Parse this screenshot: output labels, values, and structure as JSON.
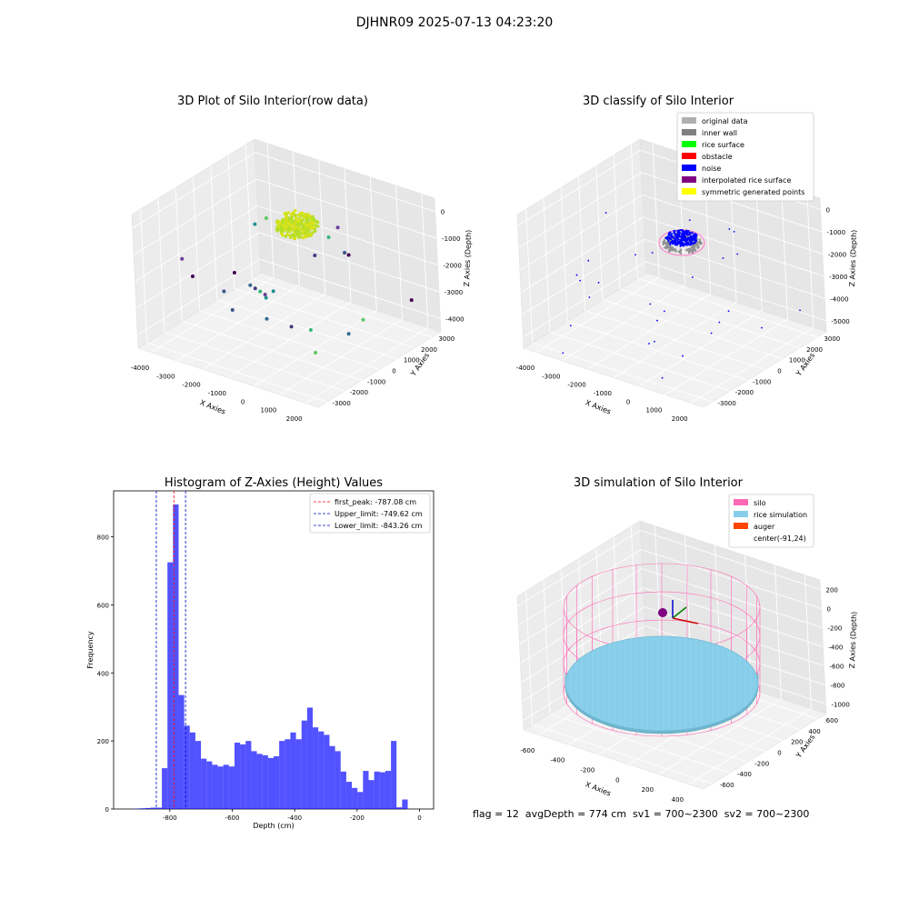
{
  "suptitle": "DJHNR09 2025-07-13 04:23:20",
  "footer": "flag = 12  avgDepth = 774 cm  sv1 = 700~2300  sv2 = 700~2300",
  "chart_data": [
    {
      "type": "scatter",
      "projection": "3d",
      "title": "3D Plot of Silo Interior(row data)",
      "xlabel": "X Axies",
      "ylabel": "Y Axies",
      "zlabel": "Z Axies (Depth)",
      "x_ticks": [
        "-4000",
        "-3000",
        "-2000",
        "-1000",
        "0",
        "1000",
        "2000"
      ],
      "y_ticks": [
        "-3000",
        "-2000",
        "-1000",
        "0",
        "1000",
        "2000",
        "3000"
      ],
      "z_ticks": [
        "0",
        "-1000",
        "-2000",
        "-3000",
        "-4000"
      ],
      "colormap": "viridis",
      "cluster": {
        "x_range": [
          -300,
          500
        ],
        "y_range": [
          -200,
          600
        ],
        "depth_range": [
          -900,
          0
        ],
        "color": "#d8e219"
      }
    },
    {
      "type": "scatter",
      "projection": "3d",
      "title": "3D classify of Silo Interior",
      "xlabel": "X Axies",
      "ylabel": "Y Axies",
      "zlabel": "Z Axies (Depth)",
      "x_ticks": [
        "-4000",
        "-3000",
        "-2000",
        "-1000",
        "0",
        "1000",
        "2000"
      ],
      "y_ticks": [
        "-3000",
        "-2000",
        "-1000",
        "0",
        "1000",
        "2000",
        "3000"
      ],
      "z_ticks": [
        "0",
        "-1000",
        "-2000",
        "-3000",
        "-4000",
        "-5000"
      ],
      "legend_position": "top-right",
      "legend": [
        {
          "label": "original data",
          "color": "#b0b0b0"
        },
        {
          "label": "inner wall",
          "color": "#808080"
        },
        {
          "label": "rice surface",
          "color": "#00ff00"
        },
        {
          "label": "obstacle",
          "color": "#ff0000"
        },
        {
          "label": "noise",
          "color": "#0000ff"
        },
        {
          "label": "interpolated rice surface",
          "color": "#800080"
        },
        {
          "label": "symmetric generated points",
          "color": "#ffff00"
        }
      ]
    },
    {
      "type": "bar",
      "title": "Histogram of Z-Axies (Height) Values",
      "xlabel": "Depth (cm)",
      "ylabel": "Frequency",
      "xlim": [
        -980,
        45
      ],
      "ylim": [
        0,
        935
      ],
      "x_ticks": [
        -800,
        -600,
        -400,
        -200,
        0
      ],
      "y_ticks": [
        0,
        200,
        400,
        600,
        800
      ],
      "bin_width": 17.9,
      "bin_start": -915,
      "bar_color": "#0000ff",
      "values": [
        1,
        2,
        3,
        4,
        4,
        120,
        725,
        895,
        335,
        245,
        225,
        200,
        148,
        140,
        130,
        125,
        130,
        125,
        195,
        190,
        200,
        170,
        162,
        158,
        150,
        155,
        200,
        205,
        225,
        205,
        260,
        298,
        240,
        228,
        218,
        185,
        170,
        110,
        80,
        62,
        50,
        112,
        85,
        110,
        108,
        112,
        200,
        5,
        28
      ],
      "lines": [
        {
          "label": "first_peak: -787.08 cm",
          "x": -787.08,
          "color": "#ff0000"
        },
        {
          "label": "Upper_limit: -749.62 cm",
          "x": -749.62,
          "color": "#0000cc"
        },
        {
          "label": "Lower_limit: -843.26 cm",
          "x": -843.26,
          "color": "#0000cc"
        }
      ],
      "legend_position": "top-right"
    },
    {
      "type": "surface",
      "projection": "3d",
      "title": "3D simulation of Silo Interior",
      "xlabel": "X Axies",
      "ylabel": "Y Axies",
      "zlabel": "Z Axies (Depth)",
      "x_ticks": [
        "-600",
        "-400",
        "-200",
        "0",
        "200",
        "400"
      ],
      "y_ticks": [
        "-600",
        "-400",
        "-200",
        "0",
        "200",
        "400",
        "600"
      ],
      "z_ticks": [
        "200",
        "0",
        "-200",
        "-400",
        "-600",
        "-800",
        "-1000"
      ],
      "legend_position": "top-right",
      "legend": [
        {
          "label": "silo",
          "color": "#ff69b4"
        },
        {
          "label": "rice simulation",
          "color": "#87ceeb"
        },
        {
          "label": "auger",
          "color": "#ff4500"
        },
        {
          "label": "center(-91,24)",
          "color": ""
        }
      ]
    }
  ]
}
